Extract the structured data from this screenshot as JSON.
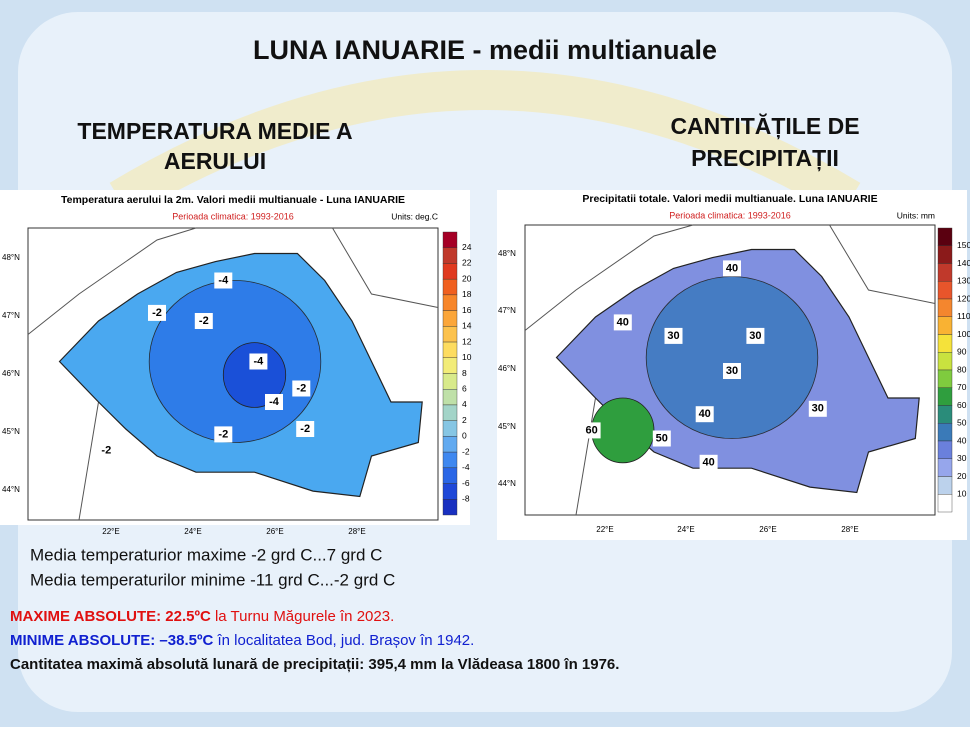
{
  "title": "LUNA IANUARIE - medii multianuale",
  "left_heading": [
    "TEMPERATURA MEDIE A",
    "AERULUI"
  ],
  "right_heading": [
    "CANTITĂȚILE DE",
    "PRECIPITAȚII"
  ],
  "maps": [
    {
      "title": "Temperatura aerului la 2m. Valori medii multianuale - Luna IANUARIE",
      "subtitle": "Perioada climatica: 1993-2016",
      "units": "Units: deg.C",
      "lat_labels": [
        "48°N",
        "47°N",
        "46°N",
        "45°N",
        "44°N"
      ],
      "lon_labels": [
        "22°E",
        "24°E",
        "26°E",
        "28°E"
      ],
      "colorbar": {
        "ticks": [
          24,
          22,
          20,
          18,
          16,
          14,
          12,
          10,
          8,
          6,
          4,
          2,
          0,
          -2,
          -4,
          -6,
          -8
        ],
        "colors": [
          "#a50026",
          "#c0392b",
          "#e03a1f",
          "#f06020",
          "#f7862a",
          "#fba63a",
          "#fcc24d",
          "#fddc60",
          "#f2ec78",
          "#d8ea8a",
          "#bfe0a8",
          "#a3d4c8",
          "#86c6e4",
          "#62aaf0",
          "#3f88f0",
          "#2a66e6",
          "#1f48d8",
          "#1830c0"
        ]
      },
      "contour_labels": [
        "-4",
        "-2",
        "-2",
        "-4",
        "-4",
        "-2",
        "-2",
        "-2",
        "-2"
      ]
    },
    {
      "title": "Precipitatii totale. Valori medii multianuale.  Luna IANUARIE",
      "subtitle": "Perioada climatica: 1993-2016",
      "units": "Units: mm",
      "lat_labels": [
        "48°N",
        "47°N",
        "46°N",
        "45°N",
        "44°N"
      ],
      "lon_labels": [
        "22°E",
        "24°E",
        "26°E",
        "28°E"
      ],
      "colorbar": {
        "ticks": [
          150,
          140,
          130,
          120,
          110,
          100,
          90,
          80,
          70,
          60,
          50,
          40,
          30,
          20,
          10
        ],
        "colors": [
          "#5a0010",
          "#8b1a1a",
          "#c0392b",
          "#e8552b",
          "#f4862e",
          "#f9b233",
          "#f5e23a",
          "#c9e23f",
          "#7fcb3e",
          "#2f9e3e",
          "#2a8c7a",
          "#3a7ab8",
          "#6a80dc",
          "#96a6ec",
          "#bcd2ec",
          "#ffffff"
        ]
      },
      "contour_labels": [
        "40",
        "40",
        "30",
        "30",
        "60",
        "50",
        "40",
        "30",
        "30",
        "40"
      ]
    }
  ],
  "stats": [
    "Media temperaturior maxime  -2 grd C...7 grd C",
    "Media temperaturilor minime  -11 grd C...-2 grd C"
  ],
  "max_abs": {
    "label": "MAXIME ABSOLUTE: 22.5ºC",
    "text": " la Turnu Măgurele în 2023."
  },
  "min_abs": {
    "label": "MINIME ABSOLUTE: –38.5ºC",
    "text": " în localitatea Bod, jud. Brașov în 1942."
  },
  "precip_max": "Cantitatea maximă absolută lunară de precipitații: 395,4 mm la Vlădeasa 1800 în 1976."
}
